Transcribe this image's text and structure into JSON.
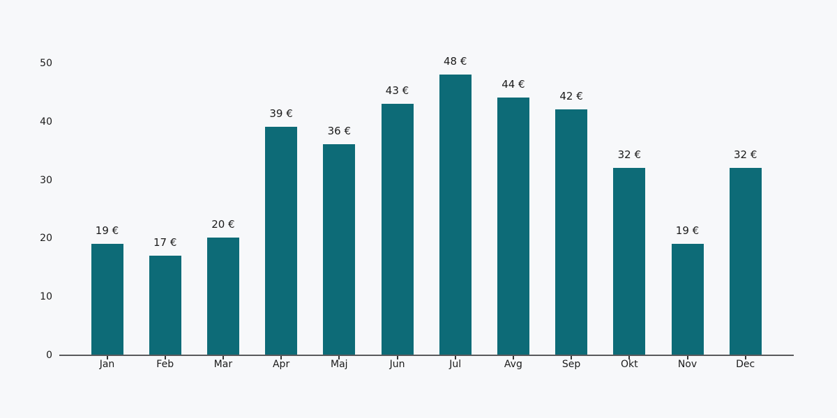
{
  "chart_data": {
    "type": "bar",
    "categories": [
      "Jan",
      "Feb",
      "Mar",
      "Apr",
      "Maj",
      "Jun",
      "Jul",
      "Avg",
      "Sep",
      "Okt",
      "Nov",
      "Dec"
    ],
    "values": [
      19,
      17,
      20,
      39,
      36,
      43,
      48,
      44,
      42,
      32,
      19,
      32
    ],
    "value_labels": [
      "19 €",
      "17 €",
      "20 €",
      "39 €",
      "36 €",
      "43 €",
      "48 €",
      "44 €",
      "42 €",
      "32 €",
      "19 €",
      "32 €"
    ],
    "title": "",
    "xlabel": "",
    "ylabel": "",
    "ylim": [
      0,
      50
    ],
    "y_ticks": [
      0,
      10,
      20,
      30,
      40,
      50
    ],
    "grid": false,
    "legend": "none",
    "colors": {
      "bar": "#0d6b77",
      "background": "#f7f8fa",
      "axis": "#58595b",
      "tick": "#333333",
      "text": "#1a1a1a"
    }
  }
}
